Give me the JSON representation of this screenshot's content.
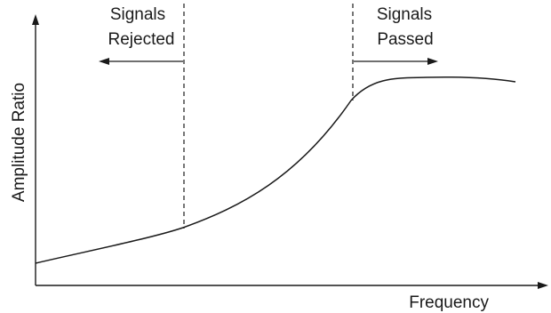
{
  "diagram": {
    "axes": {
      "x_label": "Frequency",
      "y_label": "Amplitude Ratio"
    },
    "regions": {
      "rejected": {
        "line1": "Signals",
        "line2": "Rejected",
        "arrow_direction": "left"
      },
      "passed": {
        "line1": "Signals",
        "line2": "Passed",
        "arrow_direction": "right"
      }
    }
  }
}
